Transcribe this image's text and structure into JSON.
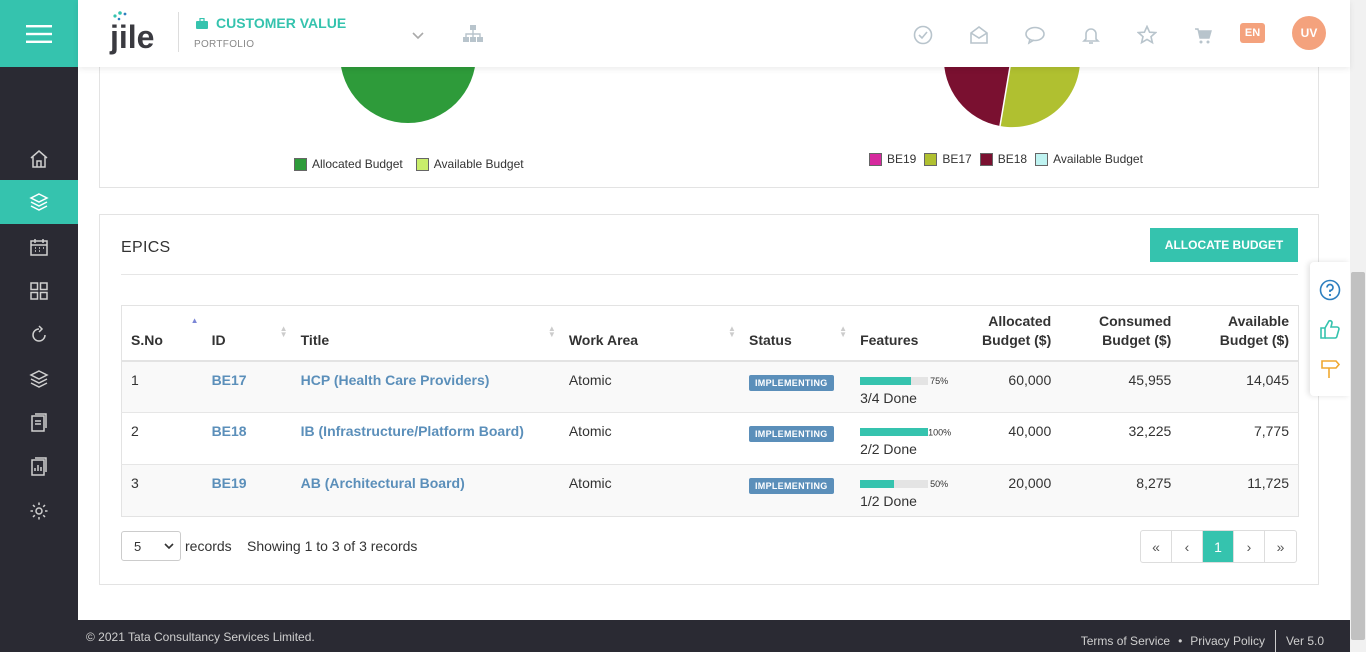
{
  "header": {
    "logo_text": "jile",
    "portfolio_title": "CUSTOMER VALUE",
    "portfolio_sub": "PORTFOLIO",
    "lang": "EN",
    "avatar": "UV",
    "icons": [
      "check-circle-icon",
      "mail-open-icon",
      "chat-icon",
      "bell-icon",
      "star-icon",
      "cart-icon"
    ]
  },
  "sidebar": {
    "items": [
      "home-icon",
      "portfolio-icon",
      "calendar-icon",
      "grid-icon",
      "refresh-icon",
      "layers-icon",
      "document-icon",
      "report-icon",
      "settings-icon"
    ],
    "active": "portfolio-icon"
  },
  "charts": {
    "left_legend": [
      {
        "label": "Allocated Budget",
        "color": "#2e9b3a"
      },
      {
        "label": "Available Budget",
        "color": "#c9ee6b"
      }
    ],
    "right_legend": [
      {
        "label": "BE19",
        "color": "#d6299e"
      },
      {
        "label": "BE17",
        "color": "#b0c030"
      },
      {
        "label": "BE18",
        "color": "#7a1030"
      },
      {
        "label": "Available Budget",
        "color": "#bff3f1"
      }
    ]
  },
  "epics": {
    "title": "EPICS",
    "allocate_button": "ALLOCATE BUDGET",
    "columns": [
      "S.No",
      "ID",
      "Title",
      "Work Area",
      "Status",
      "Features",
      "Allocated Budget ($)",
      "Consumed Budget ($)",
      "Available Budget ($)"
    ],
    "col_alloc": [
      "Allocated",
      "Budget ($)"
    ],
    "col_consumed": [
      "Consumed",
      "Budget ($)"
    ],
    "col_avail": [
      "Available",
      "Budget ($)"
    ],
    "rows": [
      {
        "sno": "1",
        "id": "BE17",
        "title": "HCP (Health Care Providers)",
        "area": "Atomic",
        "status": "IMPLEMENTING",
        "pct": "75%",
        "pct_value": 0.75,
        "done": "3/4 Done",
        "alloc": "60,000",
        "consumed": "45,955",
        "avail": "14,045"
      },
      {
        "sno": "2",
        "id": "BE18",
        "title": "IB (Infrastructure/Platform Board)",
        "area": "Atomic",
        "status": "IMPLEMENTING",
        "pct": "100%",
        "pct_value": 1.0,
        "done": "2/2 Done",
        "alloc": "40,000",
        "consumed": "32,225",
        "avail": "7,775"
      },
      {
        "sno": "3",
        "id": "BE19",
        "title": "AB (Architectural Board)",
        "area": "Atomic",
        "status": "IMPLEMENTING",
        "pct": "50%",
        "pct_value": 0.5,
        "done": "1/2 Done",
        "alloc": "20,000",
        "consumed": "8,275",
        "avail": "11,725"
      }
    ],
    "records_value": "5",
    "records_label": "records",
    "showing": "Showing 1 to 3 of 3 records",
    "pager": [
      "«",
      "‹",
      "1",
      "›",
      "»"
    ],
    "current_page": "1"
  },
  "footer": {
    "copyright": "© 2021 Tata Consultancy Services Limited.",
    "terms": "Terms of Service",
    "dot": "•",
    "privacy": "Privacy Policy",
    "version": "Ver 5.0"
  },
  "colors": {
    "accent": "#35c3ae",
    "link": "#5b8fba",
    "dark": "#2a2a33",
    "orange": "#f4a27d"
  }
}
